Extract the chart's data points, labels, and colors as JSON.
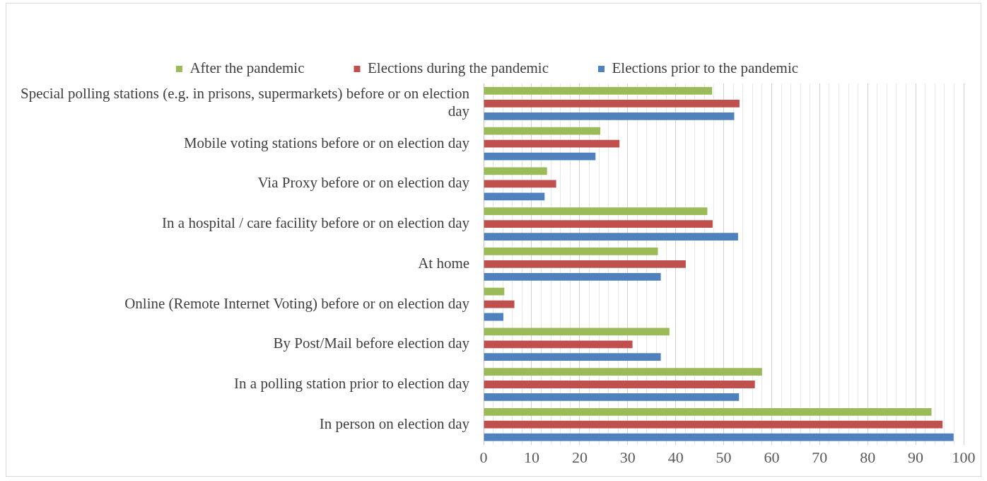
{
  "chart_data": {
    "type": "bar",
    "orientation": "horizontal",
    "legend": "top",
    "grid": "x",
    "categories": [
      "Special polling stations (e.g. in prisons, supermarkets) before or on election day",
      "Mobile voting stations before or on election day",
      "Via Proxy before or on election day",
      "In a hospital / care facility before or on election day",
      "At home",
      "Online (Remote Internet Voting) before or on election day",
      "By Post/Mail before election day",
      "In a polling station prior to election day",
      "In person on election day"
    ],
    "series": [
      {
        "name": "After the pandemic",
        "color": "#9bbb59",
        "values": [
          47.6,
          24.3,
          13.2,
          46.6,
          36.3,
          4.3,
          38.7,
          58.0,
          93.3
        ]
      },
      {
        "name": "Elections during the pandemic",
        "color": "#c0504d",
        "values": [
          53.3,
          28.3,
          15.1,
          47.7,
          42.1,
          6.4,
          31.0,
          56.5,
          95.6
        ]
      },
      {
        "name": "Elections prior to the pandemic",
        "color": "#4f81bd",
        "values": [
          52.2,
          23.3,
          12.7,
          53.0,
          36.9,
          4.1,
          36.9,
          53.2,
          97.9
        ]
      }
    ],
    "xlim": [
      0,
      100
    ],
    "xticks": [
      0,
      {
        "value": 2,
        "label": null
      },
      {
        "value": 4,
        "label": null
      },
      {
        "value": 6,
        "label": null
      },
      {
        "value": 8,
        "label": null
      },
      10,
      {
        "value": 12,
        "label": null
      },
      {
        "value": 14,
        "label": null
      },
      {
        "value": 16,
        "label": null
      },
      {
        "value": 18,
        "label": null
      },
      20,
      {
        "value": 22,
        "label": null
      },
      {
        "value": 24,
        "label": null
      },
      {
        "value": 26,
        "label": null
      },
      {
        "value": 28,
        "label": null
      },
      30,
      {
        "value": 32,
        "label": null
      },
      {
        "value": 34,
        "label": null
      },
      {
        "value": 36,
        "label": null
      },
      {
        "value": 38,
        "label": null
      },
      40,
      {
        "value": 42,
        "label": null
      },
      {
        "value": 44,
        "label": null
      },
      {
        "value": 46,
        "label": null
      },
      {
        "value": 48,
        "label": null
      },
      50,
      {
        "value": 52,
        "label": null
      },
      {
        "value": 54,
        "label": null
      },
      {
        "value": 56,
        "label": null
      },
      {
        "value": 58,
        "label": null
      },
      60,
      {
        "value": 62,
        "label": null
      },
      {
        "value": 64,
        "label": null
      },
      {
        "value": 66,
        "label": null
      },
      {
        "value": 68,
        "label": null
      },
      70,
      {
        "value": 72,
        "label": null
      },
      {
        "value": 74,
        "label": null
      },
      {
        "value": 76,
        "label": null
      },
      {
        "value": 78,
        "label": null
      },
      80,
      {
        "value": 82,
        "label": null
      },
      {
        "value": 84,
        "label": null
      },
      {
        "value": 86,
        "label": null
      },
      {
        "value": 88,
        "label": null
      },
      90,
      {
        "value": 92,
        "label": null
      },
      {
        "value": 94,
        "label": null
      },
      {
        "value": 96,
        "label": null
      },
      {
        "value": 98,
        "label": null
      },
      100
    ]
  }
}
